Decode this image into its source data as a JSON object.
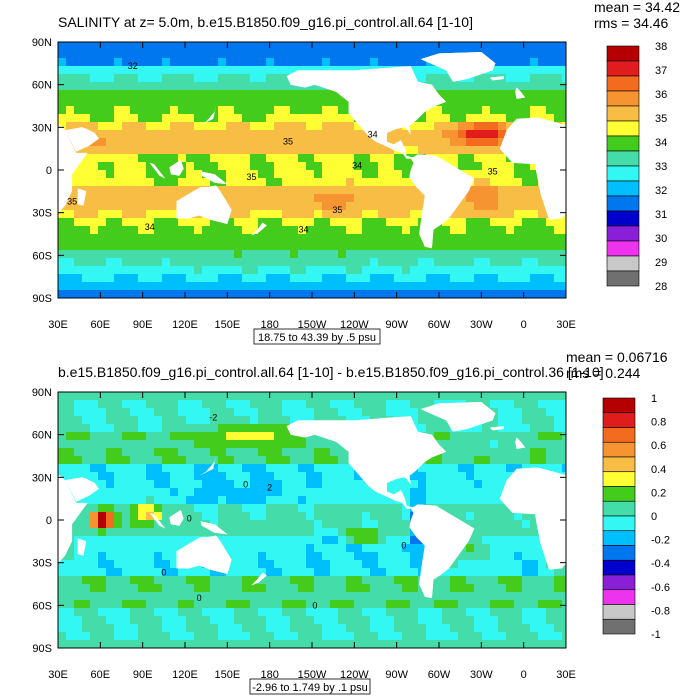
{
  "chart_data": [
    {
      "type": "heatmap",
      "title": "SALINITY at z=   5.0m, b.e15.B1850.f09_g16.pi_control.all.64 [1-10]",
      "stats": {
        "mean_label": "mean = 34.42",
        "rms_label": "rms = 34.46"
      },
      "info_label": "18.75 to 43.39 by .5 psu",
      "x_ticks": [
        "30E",
        "60E",
        "90E",
        "120E",
        "150E",
        "180",
        "150W",
        "120W",
        "90W",
        "60W",
        "30W",
        "0",
        "30E"
      ],
      "y_ticks": [
        "90N",
        "60N",
        "30N",
        "0",
        "30S",
        "60S",
        "90S"
      ],
      "colorbar": {
        "labels": [
          "38",
          "37",
          "36",
          "35",
          "34",
          "33",
          "32",
          "31",
          "30",
          "29",
          "28"
        ],
        "colors": [
          "#b40000",
          "#e01c1c",
          "#f26b1e",
          "#f59431",
          "#f7bd44",
          "#ffff33",
          "#43cc1c",
          "#44ddaa",
          "#33f7f2",
          "#00bfff",
          "#0077ee",
          "#0000cc",
          "#8a1fd8",
          "#ee33ee",
          "#c8c8c8",
          "#707070"
        ]
      },
      "contour_labels": [
        {
          "text": "32",
          "lon": 83,
          "lat": 73
        },
        {
          "text": "35",
          "lon": 193,
          "lat": 20
        },
        {
          "text": "34",
          "lon": 253,
          "lat": 25
        },
        {
          "text": "34",
          "lon": 242,
          "lat": 3
        },
        {
          "text": "35",
          "lon": 167,
          "lat": -5
        },
        {
          "text": "35",
          "lon": -22,
          "lat": -1
        },
        {
          "text": "35",
          "lon": 228,
          "lat": -28
        },
        {
          "text": "35",
          "lon": 40,
          "lat": -22
        },
        {
          "text": "34",
          "lon": 95,
          "lat": -40
        },
        {
          "text": "34",
          "lon": 204,
          "lat": -42
        }
      ],
      "field": {
        "regions": [
          {
            "lon": 83,
            "lat": 86,
            "rx": 120,
            "ry": 8,
            "v": 32,
            "w": 0.6
          },
          {
            "lon": 205,
            "lat": 28,
            "rx": 28,
            "ry": 10,
            "v": 35.3,
            "w": 1
          },
          {
            "lon": 226,
            "lat": -20,
            "rx": 28,
            "ry": 12,
            "v": 36.1,
            "w": 1
          },
          {
            "lon": 330,
            "lat": 25,
            "rx": 18,
            "ry": 8,
            "v": 37.5,
            "w": 1.5
          },
          {
            "lon": 330,
            "lat": -18,
            "rx": 14,
            "ry": 12,
            "v": 36.6,
            "w": 1
          },
          {
            "lon": 60,
            "lat": -15,
            "rx": 20,
            "ry": 12,
            "v": 35.2,
            "w": 0.6
          },
          {
            "lon": 60,
            "lat": 20,
            "rx": 10,
            "ry": 8,
            "v": 36.2,
            "w": 1
          },
          {
            "lon": 110,
            "lat": 2,
            "rx": 15,
            "ry": 10,
            "v": 33.6,
            "w": 0.7
          },
          {
            "lon": 205,
            "lat": -60,
            "rx": 100,
            "ry": 10,
            "v": 33.9,
            "w": 0.6
          },
          {
            "lon": 275,
            "lat": 5,
            "rx": 10,
            "ry": 8,
            "v": 33.2,
            "w": 0.7
          }
        ]
      }
    },
    {
      "type": "heatmap",
      "title": "b.e15.B1850.f09_g16.pi_control.all.64 [1-10] - b.e15.B1850.f09_g16.pi_control.36 [1-10]",
      "stats": {
        "mean_label": "mean = 0.06716",
        "rms_label": "rms = 0.244"
      },
      "info_label": "-2.96 to 1.749 by .1 psu",
      "x_ticks": [
        "30E",
        "60E",
        "90E",
        "120E",
        "150E",
        "180",
        "150W",
        "120W",
        "90W",
        "60W",
        "30W",
        "0",
        "30E"
      ],
      "y_ticks": [
        "90N",
        "60N",
        "30N",
        "0",
        "30S",
        "60S",
        "90S"
      ],
      "colorbar": {
        "labels": [
          "1",
          "0.8",
          "0.6",
          "0.4",
          "0.2",
          "0",
          "-0.2",
          "-0.4",
          "-0.6",
          "-0.8",
          "-1"
        ],
        "colors": [
          "#b40000",
          "#e01c1c",
          "#f26b1e",
          "#f59431",
          "#f7bd44",
          "#ffff33",
          "#43cc1c",
          "#44ddaa",
          "#33f7f2",
          "#00bfff",
          "#0077ee",
          "#0000cc",
          "#8a1fd8",
          "#ee33ee",
          "#c8c8c8",
          "#707070"
        ]
      },
      "contour_labels": [
        {
          "text": "-2",
          "lon": 140,
          "lat": 72
        },
        {
          "text": "0",
          "lon": 163,
          "lat": 25
        },
        {
          "text": "2",
          "lon": 180,
          "lat": 23
        },
        {
          "text": "0",
          "lon": 123,
          "lat": 1
        },
        {
          "text": "0",
          "lon": 275,
          "lat": -18
        },
        {
          "text": "0",
          "lon": 105,
          "lat": -37
        },
        {
          "text": "0",
          "lon": 130,
          "lat": -55
        },
        {
          "text": "0",
          "lon": 212,
          "lat": -60
        }
      ],
      "field": {
        "regions": [
          {
            "lon": 62,
            "lat": 0,
            "rx": 8,
            "ry": 6,
            "v": 0.9,
            "w": 2
          },
          {
            "lon": 95,
            "lat": 5,
            "rx": 10,
            "ry": 8,
            "v": 0.55,
            "w": 1.2
          },
          {
            "lon": 248,
            "lat": -12,
            "rx": 14,
            "ry": 5,
            "v": 0.6,
            "w": 1.2
          },
          {
            "lon": 155,
            "lat": 22,
            "rx": 45,
            "ry": 14,
            "v": -0.22,
            "w": 0.8
          },
          {
            "lon": 230,
            "lat": -20,
            "rx": 35,
            "ry": 13,
            "v": -0.18,
            "w": 0.6
          },
          {
            "lon": 322,
            "lat": -20,
            "rx": 15,
            "ry": 12,
            "v": 0.35,
            "w": 0.8
          },
          {
            "lon": 30,
            "lat": -15,
            "rx": 12,
            "ry": 20,
            "v": 0.4,
            "w": 0.7
          },
          {
            "lon": 165,
            "lat": 60,
            "rx": 30,
            "ry": 8,
            "v": 0.45,
            "w": 0.9
          },
          {
            "lon": 285,
            "lat": -5,
            "rx": 6,
            "ry": 20,
            "v": -0.5,
            "w": 1
          },
          {
            "lon": 340,
            "lat": 55,
            "rx": 20,
            "ry": 10,
            "v": -0.2,
            "w": 0.6
          }
        ]
      }
    }
  ]
}
